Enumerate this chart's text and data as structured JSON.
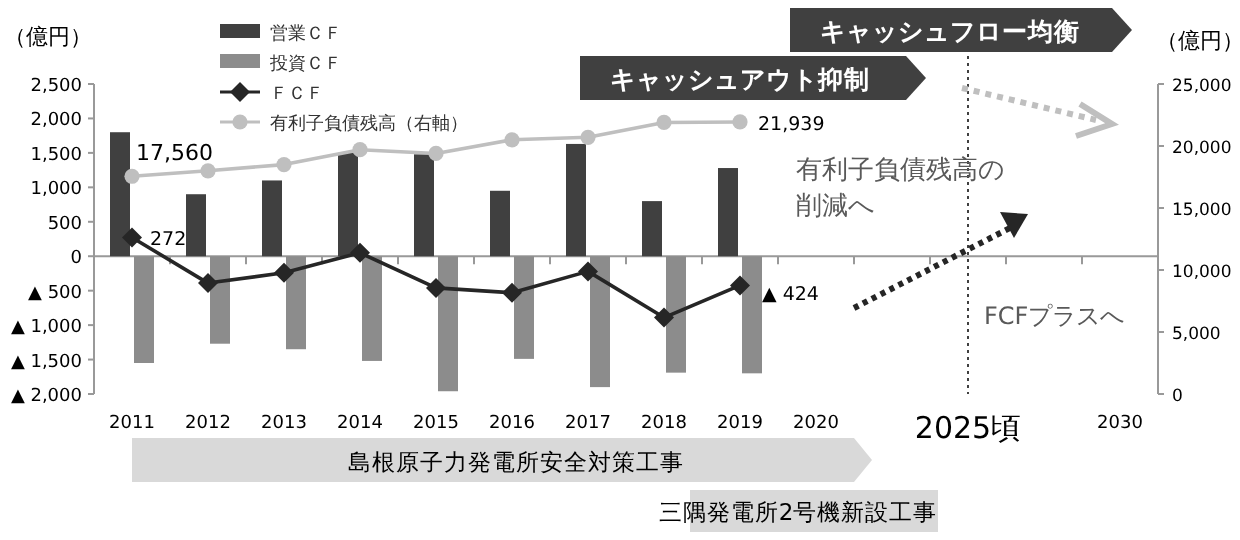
{
  "chart_data": {
    "type": "bar",
    "categories": [
      "2011",
      "2012",
      "2013",
      "2014",
      "2015",
      "2016",
      "2017",
      "2018",
      "2019",
      "2020",
      null,
      "2025頃",
      null,
      "2030"
    ],
    "series": [
      {
        "name": "営業ＣＦ",
        "color": "#404040",
        "values": [
          1800,
          900,
          1100,
          1500,
          1480,
          950,
          1630,
          800,
          1280,
          null,
          null,
          null,
          null,
          null
        ]
      },
      {
        "name": "投資ＣＦ",
        "color": "#8c8c8c",
        "values": [
          -1550,
          -1270,
          -1350,
          -1520,
          -1960,
          -1490,
          -1900,
          -1690,
          -1700,
          null,
          null,
          null,
          null,
          null
        ]
      },
      {
        "name": "ＦＣＦ",
        "type": "line",
        "color": "#262626",
        "marker": "diamond",
        "values": [
          272,
          -390,
          -240,
          50,
          -460,
          -530,
          -220,
          -890,
          -424,
          null,
          null,
          null,
          null,
          null
        ],
        "value_labels": [
          "272",
          null,
          null,
          null,
          null,
          null,
          null,
          null,
          null,
          null,
          null,
          null,
          null,
          null
        ]
      },
      {
        "name": "有利子負債残高（右軸）",
        "type": "line",
        "axis": "y2",
        "color": "#bfbfbf",
        "marker": "circle",
        "values": [
          17560,
          18000,
          18500,
          19700,
          19400,
          20500,
          20700,
          21900,
          21939,
          null,
          null,
          null,
          null,
          null
        ],
        "value_labels": [
          "17,560",
          null,
          null,
          null,
          null,
          null,
          null,
          null,
          "21,939",
          null,
          null,
          null,
          null,
          null
        ]
      }
    ],
    "ylabel": "（億円）",
    "y2label": "（億円）",
    "ylim": [
      -2000,
      2500
    ],
    "yticks": [
      {
        "value": 2500,
        "label": "2,500"
      },
      {
        "value": 2000,
        "label": "2,000"
      },
      {
        "value": 1500,
        "label": "1,500"
      },
      {
        "value": 1000,
        "label": "1,000"
      },
      500,
      0,
      {
        "value": -500,
        "label": "▲ 500"
      },
      {
        "value": -1000,
        "label": "▲ 1,000"
      },
      {
        "value": -1500,
        "label": "▲ 1,500"
      },
      {
        "value": -2000,
        "label": "▲ 2,000"
      }
    ],
    "y2lim": [
      0,
      25000
    ],
    "y2ticks": [
      0,
      {
        "value": 5000,
        "label": "5,000"
      },
      {
        "value": 10000,
        "label": "10,000"
      },
      {
        "value": 15000,
        "label": "15,000"
      },
      {
        "value": 20000,
        "label": "20,000"
      },
      {
        "value": 25000,
        "label": "25,000"
      }
    ],
    "ref_lines": [
      {
        "axis": "x",
        "value": "2025頃",
        "color": "#404040",
        "line_style": "dotted"
      }
    ],
    "legend": "top left",
    "annotations": [
      "キャッシュフロー均衡",
      "キャッシュアウト抑制",
      "有利子負債残高の",
      "削減へ",
      "FCFプラスへ",
      "島根原子力発電所安全対策工事",
      "三隅発電所2号機新設工事",
      "▲ 424"
    ]
  }
}
